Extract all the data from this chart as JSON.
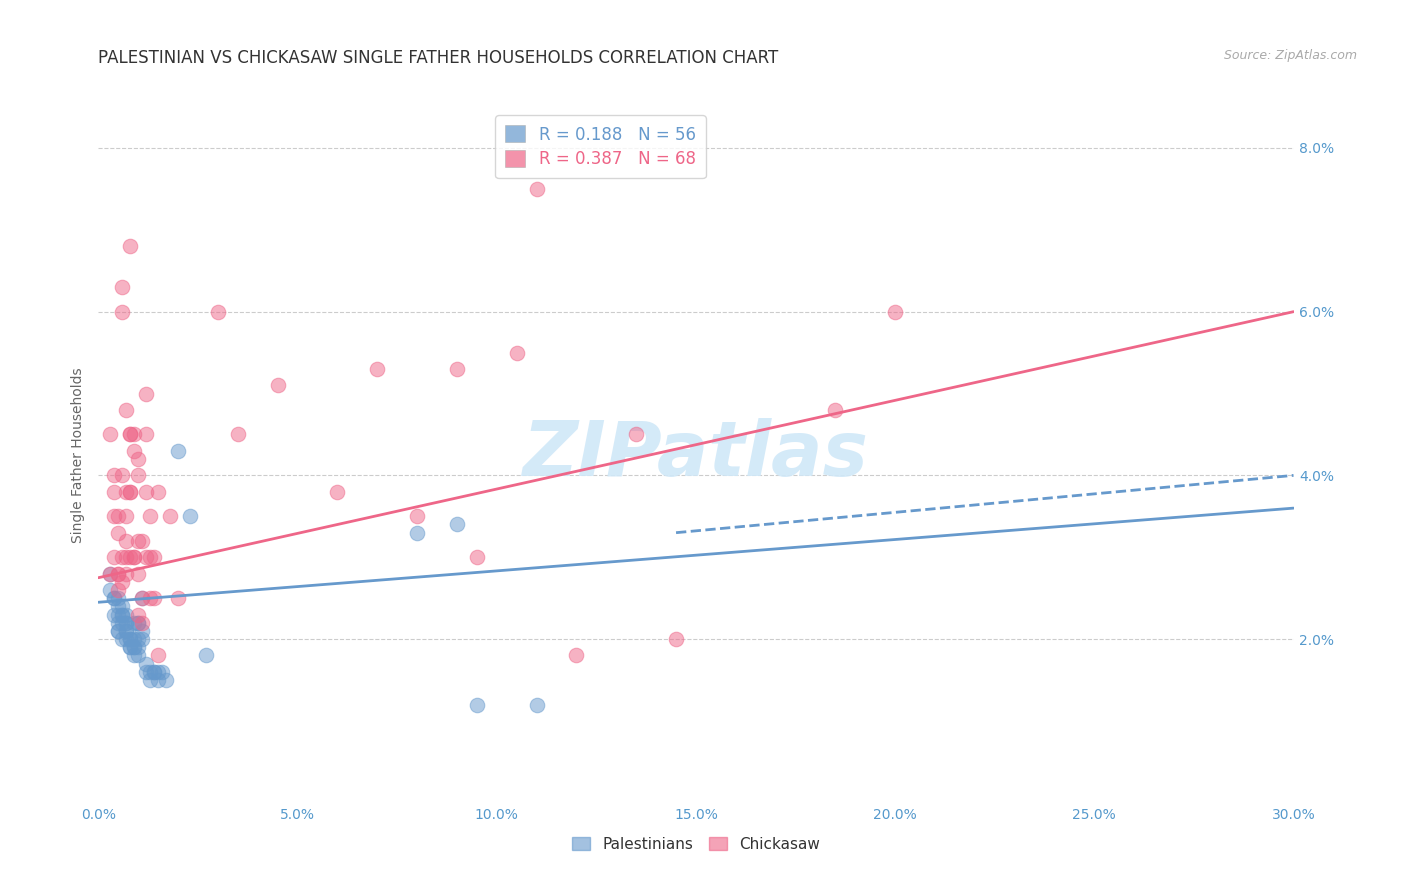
{
  "title": "PALESTINIAN VS CHICKASAW SINGLE FATHER HOUSEHOLDS CORRELATION CHART",
  "source": "Source: ZipAtlas.com",
  "ylabel": "Single Father Households",
  "xlim": [
    0.0,
    0.3
  ],
  "ylim": [
    0.0,
    0.085
  ],
  "xtick_vals": [
    0.0,
    0.05,
    0.1,
    0.15,
    0.2,
    0.25,
    0.3
  ],
  "xtick_labels": [
    "0.0%",
    "5.0%",
    "10.0%",
    "15.0%",
    "20.0%",
    "25.0%",
    "30.0%"
  ],
  "ytick_vals": [
    0.02,
    0.04,
    0.06,
    0.08
  ],
  "ytick_labels": [
    "2.0%",
    "4.0%",
    "6.0%",
    "8.0%"
  ],
  "blue_color": "#6699cc",
  "pink_color": "#ee6688",
  "watermark": "ZIPatlas",
  "watermark_color": "#d0e8f8",
  "bg_color": "#ffffff",
  "grid_color": "#cccccc",
  "tick_color": "#5599cc",
  "blue_R": "0.188",
  "blue_N": "56",
  "pink_R": "0.387",
  "pink_N": "68",
  "blue_line": {
    "x0": 0.0,
    "y0": 0.0245,
    "x1": 0.3,
    "y1": 0.036
  },
  "pink_line": {
    "x0": 0.0,
    "y0": 0.0275,
    "x1": 0.3,
    "y1": 0.06
  },
  "blue_dash_line": {
    "x0": 0.145,
    "y0": 0.033,
    "x1": 0.3,
    "y1": 0.04
  },
  "palestinians_scatter": [
    [
      0.003,
      0.026
    ],
    [
      0.003,
      0.028
    ],
    [
      0.004,
      0.025
    ],
    [
      0.004,
      0.025
    ],
    [
      0.004,
      0.023
    ],
    [
      0.005,
      0.021
    ],
    [
      0.005,
      0.024
    ],
    [
      0.005,
      0.025
    ],
    [
      0.005,
      0.023
    ],
    [
      0.005,
      0.022
    ],
    [
      0.005,
      0.021
    ],
    [
      0.006,
      0.023
    ],
    [
      0.006,
      0.022
    ],
    [
      0.006,
      0.02
    ],
    [
      0.006,
      0.024
    ],
    [
      0.006,
      0.023
    ],
    [
      0.007,
      0.022
    ],
    [
      0.007,
      0.021
    ],
    [
      0.007,
      0.02
    ],
    [
      0.007,
      0.023
    ],
    [
      0.007,
      0.022
    ],
    [
      0.007,
      0.021
    ],
    [
      0.008,
      0.02
    ],
    [
      0.008,
      0.019
    ],
    [
      0.008,
      0.02
    ],
    [
      0.008,
      0.019
    ],
    [
      0.009,
      0.019
    ],
    [
      0.009,
      0.018
    ],
    [
      0.009,
      0.02
    ],
    [
      0.009,
      0.019
    ],
    [
      0.009,
      0.022
    ],
    [
      0.01,
      0.019
    ],
    [
      0.01,
      0.022
    ],
    [
      0.01,
      0.018
    ],
    [
      0.01,
      0.02
    ],
    [
      0.01,
      0.022
    ],
    [
      0.011,
      0.025
    ],
    [
      0.011,
      0.021
    ],
    [
      0.011,
      0.02
    ],
    [
      0.012,
      0.017
    ],
    [
      0.012,
      0.016
    ],
    [
      0.013,
      0.016
    ],
    [
      0.013,
      0.015
    ],
    [
      0.014,
      0.016
    ],
    [
      0.014,
      0.016
    ],
    [
      0.015,
      0.016
    ],
    [
      0.015,
      0.015
    ],
    [
      0.016,
      0.016
    ],
    [
      0.017,
      0.015
    ],
    [
      0.02,
      0.043
    ],
    [
      0.023,
      0.035
    ],
    [
      0.027,
      0.018
    ],
    [
      0.08,
      0.033
    ],
    [
      0.09,
      0.034
    ],
    [
      0.095,
      0.012
    ],
    [
      0.11,
      0.012
    ]
  ],
  "chickasaw_scatter": [
    [
      0.003,
      0.028
    ],
    [
      0.003,
      0.045
    ],
    [
      0.004,
      0.035
    ],
    [
      0.004,
      0.038
    ],
    [
      0.004,
      0.03
    ],
    [
      0.004,
      0.04
    ],
    [
      0.005,
      0.033
    ],
    [
      0.005,
      0.028
    ],
    [
      0.005,
      0.026
    ],
    [
      0.005,
      0.035
    ],
    [
      0.005,
      0.028
    ],
    [
      0.006,
      0.03
    ],
    [
      0.006,
      0.027
    ],
    [
      0.006,
      0.063
    ],
    [
      0.006,
      0.06
    ],
    [
      0.006,
      0.04
    ],
    [
      0.007,
      0.035
    ],
    [
      0.007,
      0.03
    ],
    [
      0.007,
      0.048
    ],
    [
      0.007,
      0.038
    ],
    [
      0.007,
      0.032
    ],
    [
      0.007,
      0.028
    ],
    [
      0.008,
      0.045
    ],
    [
      0.008,
      0.038
    ],
    [
      0.008,
      0.03
    ],
    [
      0.008,
      0.068
    ],
    [
      0.008,
      0.045
    ],
    [
      0.008,
      0.038
    ],
    [
      0.009,
      0.03
    ],
    [
      0.009,
      0.045
    ],
    [
      0.009,
      0.03
    ],
    [
      0.009,
      0.043
    ],
    [
      0.01,
      0.032
    ],
    [
      0.01,
      0.042
    ],
    [
      0.01,
      0.028
    ],
    [
      0.01,
      0.023
    ],
    [
      0.01,
      0.04
    ],
    [
      0.011,
      0.025
    ],
    [
      0.011,
      0.032
    ],
    [
      0.011,
      0.022
    ],
    [
      0.012,
      0.05
    ],
    [
      0.012,
      0.038
    ],
    [
      0.012,
      0.03
    ],
    [
      0.012,
      0.045
    ],
    [
      0.013,
      0.035
    ],
    [
      0.013,
      0.025
    ],
    [
      0.013,
      0.03
    ],
    [
      0.014,
      0.025
    ],
    [
      0.014,
      0.03
    ],
    [
      0.015,
      0.018
    ],
    [
      0.015,
      0.038
    ],
    [
      0.018,
      0.035
    ],
    [
      0.02,
      0.025
    ],
    [
      0.03,
      0.06
    ],
    [
      0.035,
      0.045
    ],
    [
      0.045,
      0.051
    ],
    [
      0.06,
      0.038
    ],
    [
      0.07,
      0.053
    ],
    [
      0.08,
      0.035
    ],
    [
      0.09,
      0.053
    ],
    [
      0.095,
      0.03
    ],
    [
      0.105,
      0.055
    ],
    [
      0.11,
      0.075
    ],
    [
      0.12,
      0.018
    ],
    [
      0.135,
      0.045
    ],
    [
      0.145,
      0.02
    ],
    [
      0.185,
      0.048
    ],
    [
      0.2,
      0.06
    ]
  ]
}
